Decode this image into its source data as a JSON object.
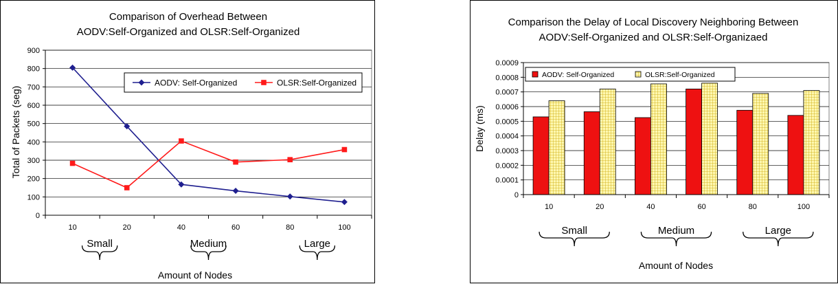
{
  "chart_data": [
    {
      "type": "line",
      "title_lines": [
        "Comparison of Overhead Between",
        "AODV:Self-Organized and OLSR:Self-Organized"
      ],
      "xlabel": "Amount of Nodes",
      "ylabel": "Total of Packets (seg)",
      "categories": [
        "10",
        "20",
        "40",
        "60",
        "80",
        "100"
      ],
      "ylim": [
        0,
        900
      ],
      "yticks": [
        "0",
        "100",
        "200",
        "300",
        "400",
        "500",
        "600",
        "700",
        "800",
        "900"
      ],
      "grid": true,
      "legend": "top-right",
      "series": [
        {
          "name": "AODV: Self-Organized",
          "color": "#1f1f8f",
          "marker": "diamond",
          "values": [
            805,
            485,
            168,
            133,
            102,
            72
          ]
        },
        {
          "name": "OLSR:Self-Organized",
          "color": "#ff1a1a",
          "marker": "square",
          "values": [
            283,
            150,
            405,
            290,
            303,
            358
          ]
        }
      ],
      "groups": [
        {
          "label": "Small",
          "from": 0,
          "to": 1
        },
        {
          "label": "Medium",
          "from": 2,
          "to": 3
        },
        {
          "label": "Large",
          "from": 4,
          "to": 5
        }
      ]
    },
    {
      "type": "bar",
      "title_lines": [
        "Comparison the Delay of Local Discovery Neighboring Between",
        "AODV:Self-Organized and OLSR:Self-Organizaed"
      ],
      "xlabel": "Amount of Nodes",
      "ylabel": "Delay (ms)",
      "categories": [
        "10",
        "20",
        "40",
        "60",
        "80",
        "100"
      ],
      "ylim": [
        0,
        0.0009
      ],
      "yticks": [
        "0",
        "0.0001",
        "0.0002",
        "0.0003",
        "0.0004",
        "0.0005",
        "0.0006",
        "0.0007",
        "0.0008",
        "0.0009"
      ],
      "grid": true,
      "legend": "top",
      "series": [
        {
          "name": "AODV: Self-Organized",
          "color": "#ee1111",
          "pattern": "solid",
          "values": [
            0.00053,
            0.000565,
            0.000525,
            0.00072,
            0.000575,
            0.00054
          ]
        },
        {
          "name": "OLSR:Self-Organized",
          "color": "#fff8b0",
          "pattern": "grid",
          "values": [
            0.00064,
            0.00072,
            0.000755,
            0.00076,
            0.00069,
            0.00071
          ]
        }
      ],
      "groups": [
        {
          "label": "Small",
          "from": 0,
          "to": 1
        },
        {
          "label": "Medium",
          "from": 2,
          "to": 3
        },
        {
          "label": "Large",
          "from": 4,
          "to": 5
        }
      ]
    }
  ]
}
